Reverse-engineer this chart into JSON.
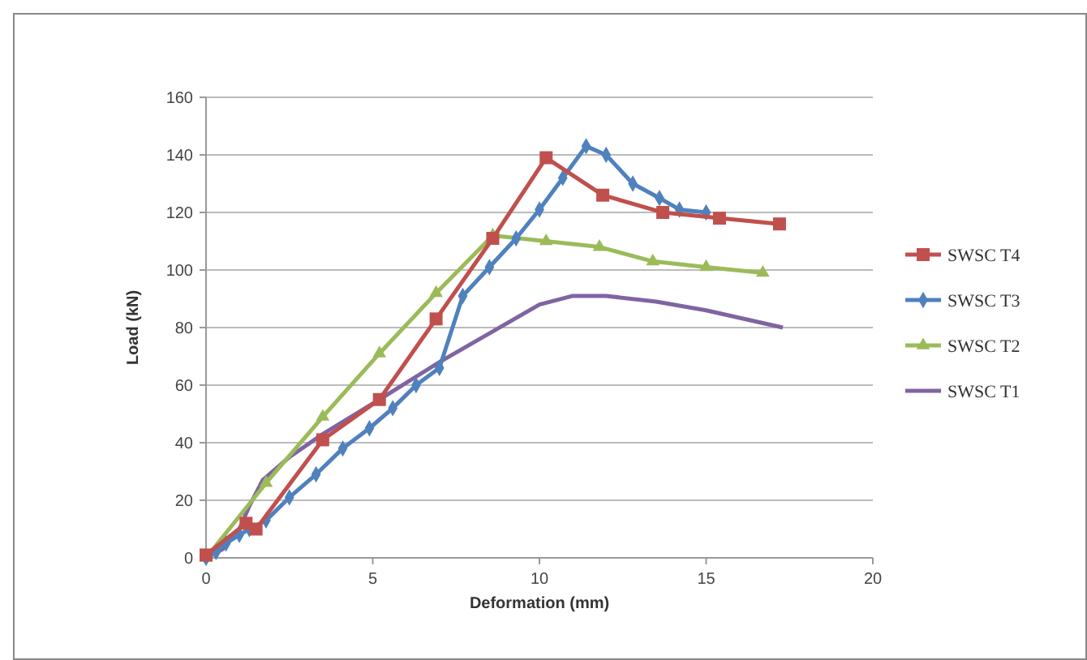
{
  "chart_data": {
    "type": "line",
    "xlabel": "Deformation (mm)",
    "ylabel": "Load (kN)",
    "xlim": [
      0,
      20
    ],
    "xticks": [
      0,
      5,
      10,
      15,
      20
    ],
    "ylim": [
      0,
      160
    ],
    "yticks": [
      0,
      20,
      40,
      60,
      80,
      100,
      120,
      140,
      160
    ],
    "grid": "y",
    "legend": "right",
    "series": [
      {
        "name": "SWSC T4",
        "color": "#c0504d",
        "marker": "square",
        "x": [
          0,
          1.2,
          1.5,
          3.5,
          5.2,
          6.9,
          8.6,
          10.2,
          11.9,
          13.7,
          15.4,
          17.2
        ],
        "values": [
          1,
          12,
          10,
          41,
          55,
          83,
          111,
          139,
          126,
          120,
          118,
          116
        ]
      },
      {
        "name": "SWSC T3",
        "color": "#4f81bd",
        "marker": "diamond",
        "x": [
          0,
          0.3,
          0.6,
          1,
          1.3,
          1.8,
          2.5,
          3.3,
          4.1,
          4.9,
          5.6,
          6.3,
          7,
          7.7,
          8.5,
          9.3,
          10,
          10.7,
          11.4,
          12,
          12.8,
          13.6,
          14.2,
          15
        ],
        "values": [
          0,
          2,
          5,
          8,
          10,
          13,
          21,
          29,
          38,
          45,
          52,
          60,
          66,
          91,
          101,
          111,
          121,
          132,
          143,
          140,
          130,
          125,
          121,
          120
        ]
      },
      {
        "name": "SWSC T2",
        "color": "#9bbb59",
        "marker": "triangle",
        "x": [
          0,
          1.8,
          3.5,
          5.2,
          6.9,
          8.6,
          10.2,
          11.8,
          13.4,
          15,
          16.7
        ],
        "values": [
          0,
          26,
          49,
          71,
          92,
          112,
          110,
          108,
          103,
          101,
          99
        ]
      },
      {
        "name": "SWSC T1",
        "color": "#8064a2",
        "marker": "none",
        "x": [
          0,
          0.5,
          1,
          1.3,
          1.7,
          2.5,
          3.5,
          5.2,
          7,
          8.5,
          10,
          11,
          12,
          13.5,
          15,
          17.3
        ],
        "values": [
          0,
          3,
          10,
          18,
          27,
          35,
          43,
          55,
          68,
          78,
          88,
          91,
          91,
          89,
          86,
          80
        ]
      }
    ]
  }
}
